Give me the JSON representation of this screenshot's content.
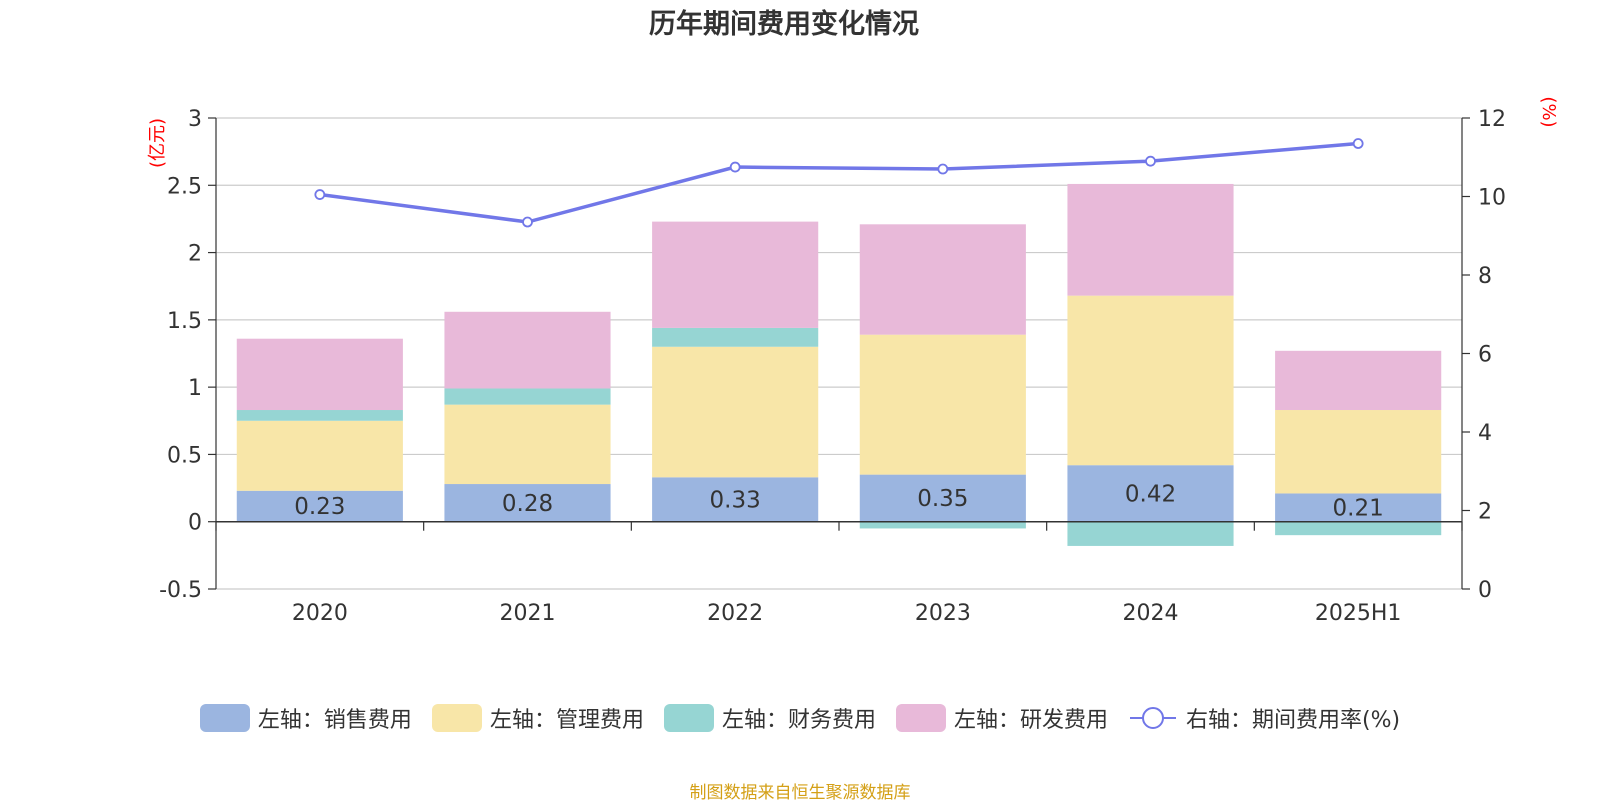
{
  "chart_data": {
    "type": "bar",
    "title": "历年期间费用变化情况",
    "categories": [
      "2020",
      "2021",
      "2022",
      "2023",
      "2024",
      "2025H1"
    ],
    "left_axis_unit": "(亿元)",
    "right_axis_unit": "(%)",
    "ylim_left": [
      -0.5,
      3
    ],
    "yticks_left": [
      "-0.5",
      "0",
      "0.5",
      "1",
      "1.5",
      "2",
      "2.5",
      "3"
    ],
    "ylim_right": [
      0,
      12
    ],
    "yticks_right": [
      "0",
      "2",
      "4",
      "6",
      "8",
      "10",
      "12"
    ],
    "series": [
      {
        "name": "左轴：销售费用",
        "type": "bar",
        "axis": "left",
        "color": "#9bb5e0",
        "values": [
          0.23,
          0.28,
          0.33,
          0.35,
          0.42,
          0.21
        ],
        "labels": [
          "0.23",
          "0.28",
          "0.33",
          "0.35",
          "0.42",
          "0.21"
        ]
      },
      {
        "name": "左轴：管理费用",
        "type": "bar",
        "axis": "left",
        "color": "#f8e6a8",
        "values": [
          0.52,
          0.59,
          0.97,
          1.04,
          1.26,
          0.62
        ]
      },
      {
        "name": "左轴：财务费用",
        "type": "bar",
        "axis": "left",
        "color": "#96d5d3",
        "values": [
          0.08,
          0.12,
          0.14,
          -0.05,
          -0.18,
          -0.1
        ]
      },
      {
        "name": "左轴：研发费用",
        "type": "bar",
        "axis": "left",
        "color": "#e8b9d9",
        "values": [
          0.53,
          0.57,
          0.79,
          0.82,
          0.83,
          0.44
        ]
      },
      {
        "name": "右轴：期间费用率(%)",
        "type": "line",
        "axis": "right",
        "color": "#7177e8",
        "values": [
          10.05,
          9.35,
          10.75,
          10.7,
          10.9,
          11.35
        ]
      }
    ],
    "grid": true,
    "legend_position": "bottom"
  },
  "colors": {
    "axis_unit": "#ff0000",
    "source": "#d4a017"
  },
  "source_text": "制图数据来自恒生聚源数据库"
}
